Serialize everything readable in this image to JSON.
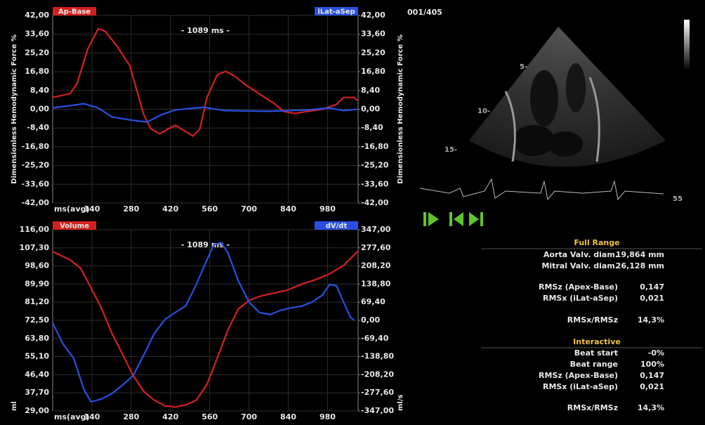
{
  "chart_data": [
    {
      "type": "line",
      "annotation": "- 1089 ms -",
      "xlabel": "ms(avg)",
      "ylabel": "Dimensionless Hemodynamic Force %",
      "y2label": "Dimensionless Hemodynamic Force %",
      "xlim": [
        0,
        1089
      ],
      "xticks": [
        140,
        280,
        420,
        560,
        700,
        840,
        980
      ],
      "ylim": [
        -42,
        42
      ],
      "yticks": [
        {
          "value": 42,
          "label": "42,00"
        },
        {
          "value": 33.6,
          "label": "33,60"
        },
        {
          "value": 25.2,
          "label": "25,20"
        },
        {
          "value": 16.8,
          "label": "16,80"
        },
        {
          "value": 8.4,
          "label": "8,40"
        },
        {
          "value": 0,
          "label": "0,00"
        },
        {
          "value": -8.4,
          "label": "-8,40"
        },
        {
          "value": -16.8,
          "label": "-16,80"
        },
        {
          "value": -25.2,
          "label": "-25,20"
        },
        {
          "value": -33.6,
          "label": "-33,60"
        },
        {
          "value": -42,
          "label": "-42,00"
        }
      ],
      "y2lim": [
        -42,
        42
      ],
      "y2ticks": [
        {
          "value": 42,
          "label": "42,00"
        },
        {
          "value": 33.6,
          "label": "33,60"
        },
        {
          "value": 25.2,
          "label": "25,20"
        },
        {
          "value": 16.8,
          "label": "16,80"
        },
        {
          "value": 8.4,
          "label": "8,40"
        },
        {
          "value": 0,
          "label": "0,00"
        },
        {
          "value": -8.4,
          "label": "-8,40"
        },
        {
          "value": -16.8,
          "label": "-16,80"
        },
        {
          "value": -25.2,
          "label": "-25,20"
        },
        {
          "value": -33.6,
          "label": "-33,60"
        },
        {
          "value": -42,
          "label": "-42,00"
        }
      ],
      "grid": true,
      "series": [
        {
          "name": "Ap-Base",
          "color": "#d42020",
          "x": [
            0,
            62,
            87,
            125,
            162,
            187,
            225,
            275,
            300,
            325,
            350,
            382,
            412,
            437,
            467,
            500,
            525,
            550,
            587,
            617,
            650,
            687,
            737,
            787,
            825,
            862,
            912,
            962,
            1012,
            1037,
            1075,
            1087
          ],
          "values": [
            5.3,
            7,
            11.6,
            27,
            36,
            35,
            29,
            19.5,
            8.5,
            -2.5,
            -8.8,
            -11,
            -8.8,
            -7.2,
            -9.4,
            -12,
            -8.8,
            5.3,
            15.4,
            17,
            14.8,
            11,
            6.9,
            2.8,
            -1,
            -1.9,
            -0.9,
            0,
            2.2,
            5.3,
            5.3,
            3.8
          ]
        },
        {
          "name": "iLat-aSep",
          "color": "#2a4fe0",
          "x": [
            0,
            62,
            112,
            162,
            212,
            287,
            337,
            387,
            437,
            487,
            537,
            612,
            762,
            912,
            987,
            1037,
            1087
          ],
          "values": [
            0.6,
            1.6,
            2.5,
            0.6,
            -3.5,
            -5,
            -5.7,
            -2.5,
            -0.3,
            0.3,
            0.9,
            -0.6,
            -0.9,
            -0.3,
            0.6,
            -0.6,
            0
          ]
        }
      ]
    },
    {
      "type": "line",
      "annotation": "- 1089 ms -",
      "xlabel": "ms(avg)",
      "ylabel": "ml",
      "y2label": "ml/s",
      "xlim": [
        0,
        1089
      ],
      "xticks": [
        140,
        280,
        420,
        560,
        700,
        840,
        980
      ],
      "ylim": [
        29,
        116
      ],
      "yticks": [
        {
          "value": 116,
          "label": "116,00"
        },
        {
          "value": 107.3,
          "label": "107,30"
        },
        {
          "value": 98.6,
          "label": "98,60"
        },
        {
          "value": 89.9,
          "label": "89,90"
        },
        {
          "value": 81.2,
          "label": "81,20"
        },
        {
          "value": 72.5,
          "label": "72,50"
        },
        {
          "value": 63.8,
          "label": "63,80"
        },
        {
          "value": 55.1,
          "label": "55,10"
        },
        {
          "value": 46.4,
          "label": "46,40"
        },
        {
          "value": 37.7,
          "label": "37,70"
        },
        {
          "value": 29,
          "label": "29,00"
        }
      ],
      "y2lim": [
        -347,
        347
      ],
      "y2ticks": [
        {
          "value": 347,
          "label": "347,00"
        },
        {
          "value": 277.6,
          "label": "277,60"
        },
        {
          "value": 208.2,
          "label": "208,20"
        },
        {
          "value": 138.8,
          "label": "138,80"
        },
        {
          "value": 69.4,
          "label": "69,40"
        },
        {
          "value": 0,
          "label": "0,00"
        },
        {
          "value": -69.4,
          "label": "-69,40"
        },
        {
          "value": -138.8,
          "label": "-138,80"
        },
        {
          "value": -208.2,
          "label": "-208,20"
        },
        {
          "value": -277.6,
          "label": "-277,60"
        },
        {
          "value": -347,
          "label": "-347,00"
        }
      ],
      "grid": true,
      "series": [
        {
          "name": "Volume",
          "color": "#d42020",
          "x": [
            0,
            62,
            100,
            137,
            175,
            212,
            250,
            287,
            325,
            362,
            400,
            437,
            475,
            512,
            550,
            587,
            625,
            662,
            700,
            737,
            787,
            837,
            887,
            937,
            987,
            1037,
            1075,
            1087
          ],
          "values": [
            105.5,
            101.5,
            97.5,
            88,
            78,
            66,
            56,
            46,
            38.3,
            34.2,
            31.5,
            30.9,
            31.9,
            34.2,
            41.7,
            54.5,
            68,
            78,
            82,
            84,
            85.5,
            87,
            89.8,
            92,
            94.8,
            98.8,
            104,
            105.5
          ]
        },
        {
          "name": "dV/dt",
          "color": "#2a4fe0",
          "axis": "y2",
          "x": [
            0,
            37,
            75,
            112,
            137,
            175,
            212,
            250,
            287,
            325,
            362,
            400,
            437,
            475,
            512,
            550,
            575,
            600,
            625,
            662,
            700,
            737,
            775,
            812,
            850,
            887,
            925,
            962,
            987,
            1012,
            1037,
            1062,
            1075
          ],
          "values": [
            -10,
            -91,
            -145,
            -266,
            -312,
            -301,
            -280,
            -247,
            -212,
            -132,
            -51,
            3,
            30,
            56,
            137,
            231,
            290,
            298,
            258,
            151,
            70,
            30,
            22,
            38,
            48,
            54,
            70,
            97,
            137,
            132,
            70,
            11,
            0
          ]
        }
      ]
    }
  ],
  "viewer": {
    "frame_counter": "001/405",
    "heart_rate": "55"
  },
  "full_range": {
    "title": "Full Range",
    "rows": [
      {
        "label": "Aorta Valv. diam.",
        "value": "19,864 mm"
      },
      {
        "label": "Mitral Valv. diam.",
        "value": "26,128 mm"
      },
      {
        "label": "RMSz (Apex-Base)",
        "value": "0,147"
      },
      {
        "label": "RMSx (iLat-aSep)",
        "value": "0,021"
      },
      {
        "label": "RMSx/RMSz",
        "value": "14,3%"
      }
    ]
  },
  "interactive": {
    "title": "Interactive",
    "rows": [
      {
        "label": "Beat start",
        "value": "-0%"
      },
      {
        "label": "Beat range",
        "value": "100%"
      },
      {
        "label": "RMSz (Apex-Base)",
        "value": "0,147"
      },
      {
        "label": "RMSx (iLat-aSep)",
        "value": "0,021"
      },
      {
        "label": "RMSx/RMSz",
        "value": "14,3%"
      }
    ]
  }
}
